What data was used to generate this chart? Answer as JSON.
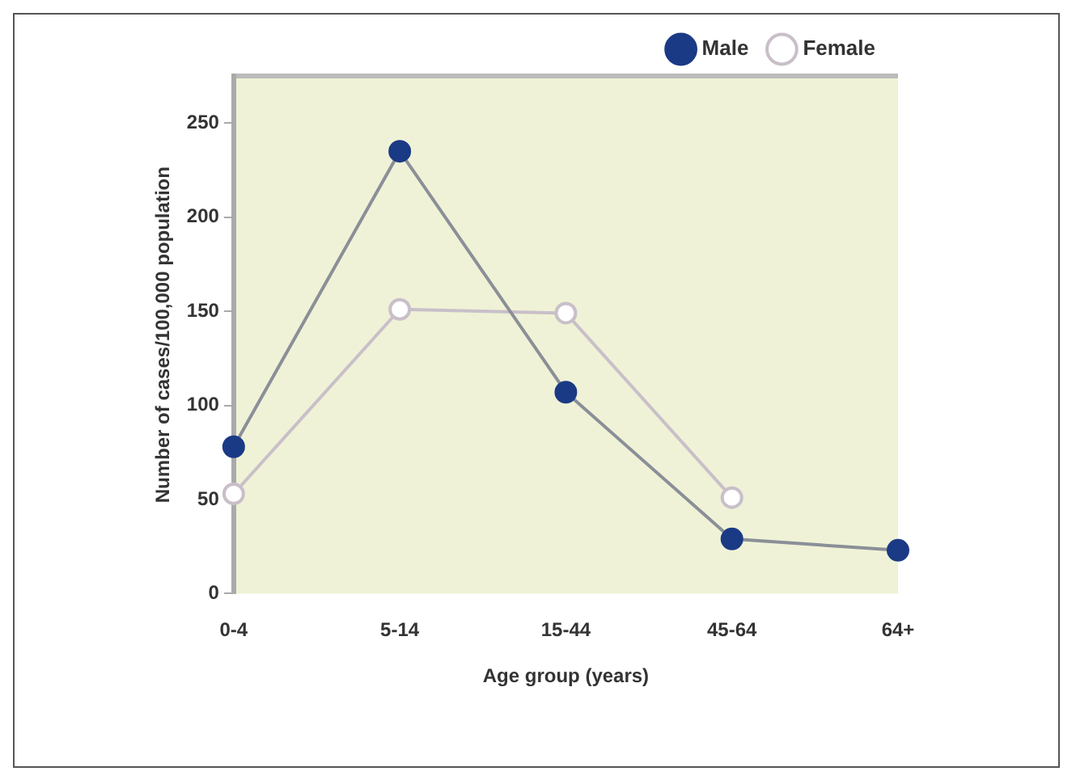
{
  "chart_data": {
    "type": "line",
    "xlabel": "Age group (years)",
    "ylabel": "Number of cases/100,000 population",
    "categories": [
      "0-4",
      "5-14",
      "15-44",
      "45-64",
      "64+"
    ],
    "series": [
      {
        "name": "Male",
        "color": "#1b3a85",
        "values": [
          78,
          235,
          107,
          29,
          23
        ]
      },
      {
        "name": "Female",
        "color": "#c9bfc9",
        "values": [
          53,
          151,
          149,
          51,
          null
        ]
      }
    ],
    "ylim": [
      0,
      275
    ],
    "yticks": [
      0,
      50,
      100,
      150,
      200,
      250
    ],
    "grid": false,
    "legend": "top right",
    "marker": "circle",
    "line_style": "solid"
  }
}
